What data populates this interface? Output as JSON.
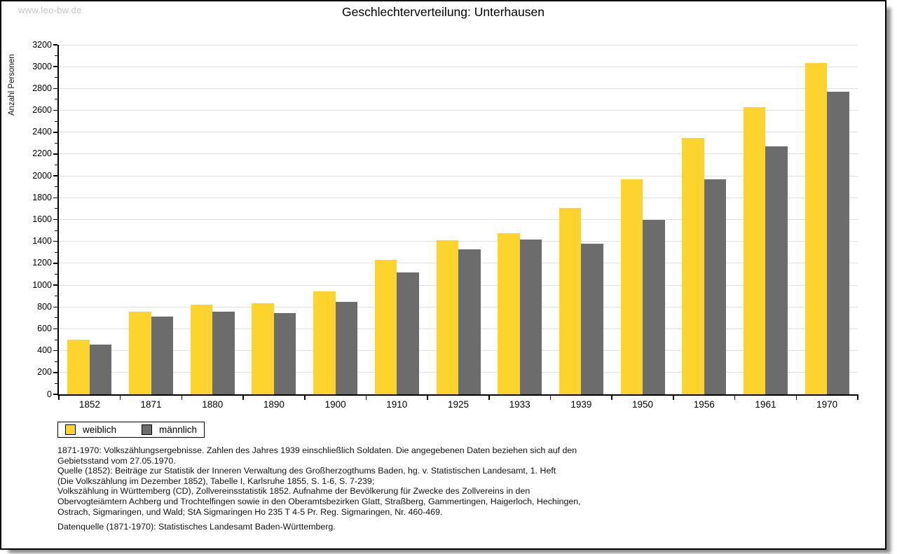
{
  "watermark": "www.leo-bw.de",
  "title": "Geschlechterverteilung: Unterhausen",
  "y_axis_title": "Anzahl Personen",
  "footnote_lines": [
    "1871-1970: Volkszählungsergebnisse. Zahlen des Jahres 1939 einschließlich Soldaten. Die angegebenen Daten beziehen sich auf den",
    "Gebietsstand vom 27.05.1970.",
    "Quelle (1852): Beiträge zur Statistik der Inneren Verwaltung des Großherzogthums Baden, hg. v. Statistischen Landesamt, 1. Heft",
    "(Die Volkszählung im Dezember 1852), Tabelle I, Karlsruhe 1855, S. 1-6, S. 7-239;",
    "Volkszählung in Württemberg (CD), Zollvereinsstatistik 1852. Aufnahme der Bevölkerung für Zwecke des Zollvereins in den",
    "Obervogteiämtern Achberg und Trochtelfingen sowie in den Oberamtsbezirken Glatt, Straßberg, Gammertingen, Haigerloch, Hechingen,",
    "Ostrach, Sigmaringen, und Wald; StA Sigmaringen Ho 235 T 4-5 Pr. Reg. Sigmaringen, Nr. 460-469."
  ],
  "datasource_line": "Datenquelle (1871-1970): Statistisches Landesamt Baden-Württemberg.",
  "colors": {
    "weiblich": "#fcd42d",
    "maennlich": "#6c6c6c",
    "gridline": "#e1e1e1",
    "watermark": "#c6c6c6"
  },
  "chart_data": {
    "type": "bar",
    "title": "Geschlechterverteilung: Unterhausen",
    "ylabel": "Anzahl Personen",
    "xlabel": "",
    "ylim": [
      0,
      3200
    ],
    "ytick_step": 200,
    "ytick_minor_step": 100,
    "grid": true,
    "legend_position": "bottom-left",
    "categories": [
      "1852",
      "1871",
      "1880",
      "1890",
      "1900",
      "1910",
      "1925",
      "1933",
      "1939",
      "1950",
      "1956",
      "1961",
      "1970"
    ],
    "series": [
      {
        "name": "weiblich",
        "color": "#fcd42d",
        "values": [
          500,
          760,
          820,
          835,
          940,
          1230,
          1410,
          1475,
          1705,
          1970,
          2350,
          2630,
          3035
        ]
      },
      {
        "name": "männlich",
        "color": "#6c6c6c",
        "values": [
          455,
          710,
          760,
          745,
          845,
          1115,
          1325,
          1415,
          1380,
          1595,
          1970,
          2270,
          2770
        ]
      }
    ]
  }
}
